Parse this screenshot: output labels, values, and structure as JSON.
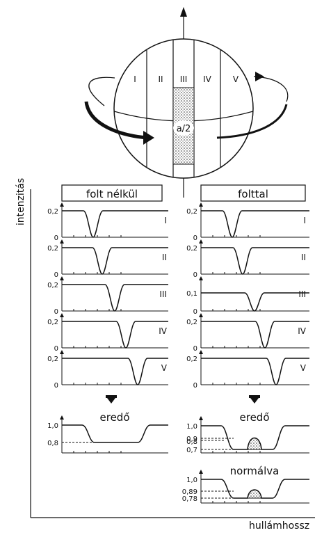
{
  "figure": {
    "y_axis_label": "intenzitás",
    "x_axis_label": "hullámhossz",
    "sphere": {
      "zones": [
        "I",
        "II",
        "III",
        "IV",
        "V"
      ],
      "spot_label": "a/2",
      "colors": {
        "ink": "#111111",
        "paper": "#ffffff",
        "spot": "#9a9a9a"
      }
    },
    "left_column": {
      "title": "folt nélkül",
      "panels": [
        {
          "zone": "I",
          "ticks": [
            "0,2",
            "0"
          ]
        },
        {
          "zone": "II",
          "ticks": [
            "0,2",
            "0"
          ]
        },
        {
          "zone": "III",
          "ticks": [
            "0,2",
            "0"
          ]
        },
        {
          "zone": "IV",
          "ticks": [
            "0,2",
            "0"
          ]
        },
        {
          "zone": "V",
          "ticks": [
            "0,2",
            "0"
          ]
        }
      ],
      "result_label": "eredő",
      "result_ticks": [
        "1,0",
        "0,8"
      ]
    },
    "right_column": {
      "title": "folttal",
      "panels": [
        {
          "zone": "I",
          "ticks": [
            "0,2",
            "0"
          ]
        },
        {
          "zone": "II",
          "ticks": [
            "0,2",
            "0"
          ]
        },
        {
          "zone": "III",
          "ticks": [
            "0,1",
            "0"
          ]
        },
        {
          "zone": "IV",
          "ticks": [
            "0,2",
            "0"
          ]
        },
        {
          "zone": "V",
          "ticks": [
            "0,2",
            "0"
          ]
        }
      ],
      "result_label": "eredő",
      "result_ticks": [
        "1,0",
        "0,9",
        "0,8",
        "0,7"
      ],
      "normalized_label": "normálva",
      "normalized_ticks": [
        "1,0",
        "0,89",
        "0,78"
      ]
    }
  }
}
